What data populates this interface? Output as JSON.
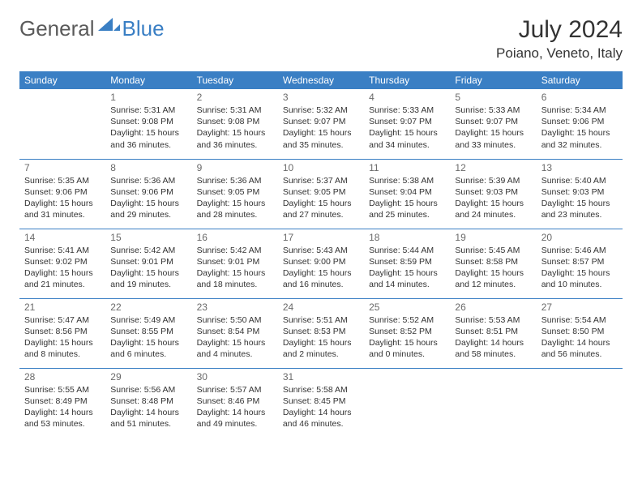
{
  "logo": {
    "text1": "General",
    "text2": "Blue"
  },
  "title": "July 2024",
  "location": "Poiano, Veneto, Italy",
  "colors": {
    "header_bg": "#3a7fc4",
    "header_text": "#ffffff",
    "border": "#3a7fc4",
    "daynum": "#6a6a6a",
    "text": "#333333",
    "logo_gray": "#5a5a5a",
    "logo_blue": "#3a7fc4"
  },
  "weekdays": [
    "Sunday",
    "Monday",
    "Tuesday",
    "Wednesday",
    "Thursday",
    "Friday",
    "Saturday"
  ],
  "weeks": [
    [
      null,
      {
        "n": "1",
        "sr": "5:31 AM",
        "ss": "9:08 PM",
        "dl": "15 hours and 36 minutes."
      },
      {
        "n": "2",
        "sr": "5:31 AM",
        "ss": "9:08 PM",
        "dl": "15 hours and 36 minutes."
      },
      {
        "n": "3",
        "sr": "5:32 AM",
        "ss": "9:07 PM",
        "dl": "15 hours and 35 minutes."
      },
      {
        "n": "4",
        "sr": "5:33 AM",
        "ss": "9:07 PM",
        "dl": "15 hours and 34 minutes."
      },
      {
        "n": "5",
        "sr": "5:33 AM",
        "ss": "9:07 PM",
        "dl": "15 hours and 33 minutes."
      },
      {
        "n": "6",
        "sr": "5:34 AM",
        "ss": "9:06 PM",
        "dl": "15 hours and 32 minutes."
      }
    ],
    [
      {
        "n": "7",
        "sr": "5:35 AM",
        "ss": "9:06 PM",
        "dl": "15 hours and 31 minutes."
      },
      {
        "n": "8",
        "sr": "5:36 AM",
        "ss": "9:06 PM",
        "dl": "15 hours and 29 minutes."
      },
      {
        "n": "9",
        "sr": "5:36 AM",
        "ss": "9:05 PM",
        "dl": "15 hours and 28 minutes."
      },
      {
        "n": "10",
        "sr": "5:37 AM",
        "ss": "9:05 PM",
        "dl": "15 hours and 27 minutes."
      },
      {
        "n": "11",
        "sr": "5:38 AM",
        "ss": "9:04 PM",
        "dl": "15 hours and 25 minutes."
      },
      {
        "n": "12",
        "sr": "5:39 AM",
        "ss": "9:03 PM",
        "dl": "15 hours and 24 minutes."
      },
      {
        "n": "13",
        "sr": "5:40 AM",
        "ss": "9:03 PM",
        "dl": "15 hours and 23 minutes."
      }
    ],
    [
      {
        "n": "14",
        "sr": "5:41 AM",
        "ss": "9:02 PM",
        "dl": "15 hours and 21 minutes."
      },
      {
        "n": "15",
        "sr": "5:42 AM",
        "ss": "9:01 PM",
        "dl": "15 hours and 19 minutes."
      },
      {
        "n": "16",
        "sr": "5:42 AM",
        "ss": "9:01 PM",
        "dl": "15 hours and 18 minutes."
      },
      {
        "n": "17",
        "sr": "5:43 AM",
        "ss": "9:00 PM",
        "dl": "15 hours and 16 minutes."
      },
      {
        "n": "18",
        "sr": "5:44 AM",
        "ss": "8:59 PM",
        "dl": "15 hours and 14 minutes."
      },
      {
        "n": "19",
        "sr": "5:45 AM",
        "ss": "8:58 PM",
        "dl": "15 hours and 12 minutes."
      },
      {
        "n": "20",
        "sr": "5:46 AM",
        "ss": "8:57 PM",
        "dl": "15 hours and 10 minutes."
      }
    ],
    [
      {
        "n": "21",
        "sr": "5:47 AM",
        "ss": "8:56 PM",
        "dl": "15 hours and 8 minutes."
      },
      {
        "n": "22",
        "sr": "5:49 AM",
        "ss": "8:55 PM",
        "dl": "15 hours and 6 minutes."
      },
      {
        "n": "23",
        "sr": "5:50 AM",
        "ss": "8:54 PM",
        "dl": "15 hours and 4 minutes."
      },
      {
        "n": "24",
        "sr": "5:51 AM",
        "ss": "8:53 PM",
        "dl": "15 hours and 2 minutes."
      },
      {
        "n": "25",
        "sr": "5:52 AM",
        "ss": "8:52 PM",
        "dl": "15 hours and 0 minutes."
      },
      {
        "n": "26",
        "sr": "5:53 AM",
        "ss": "8:51 PM",
        "dl": "14 hours and 58 minutes."
      },
      {
        "n": "27",
        "sr": "5:54 AM",
        "ss": "8:50 PM",
        "dl": "14 hours and 56 minutes."
      }
    ],
    [
      {
        "n": "28",
        "sr": "5:55 AM",
        "ss": "8:49 PM",
        "dl": "14 hours and 53 minutes."
      },
      {
        "n": "29",
        "sr": "5:56 AM",
        "ss": "8:48 PM",
        "dl": "14 hours and 51 minutes."
      },
      {
        "n": "30",
        "sr": "5:57 AM",
        "ss": "8:46 PM",
        "dl": "14 hours and 49 minutes."
      },
      {
        "n": "31",
        "sr": "5:58 AM",
        "ss": "8:45 PM",
        "dl": "14 hours and 46 minutes."
      },
      null,
      null,
      null
    ]
  ],
  "labels": {
    "sunrise": "Sunrise:",
    "sunset": "Sunset:",
    "daylight": "Daylight:"
  }
}
